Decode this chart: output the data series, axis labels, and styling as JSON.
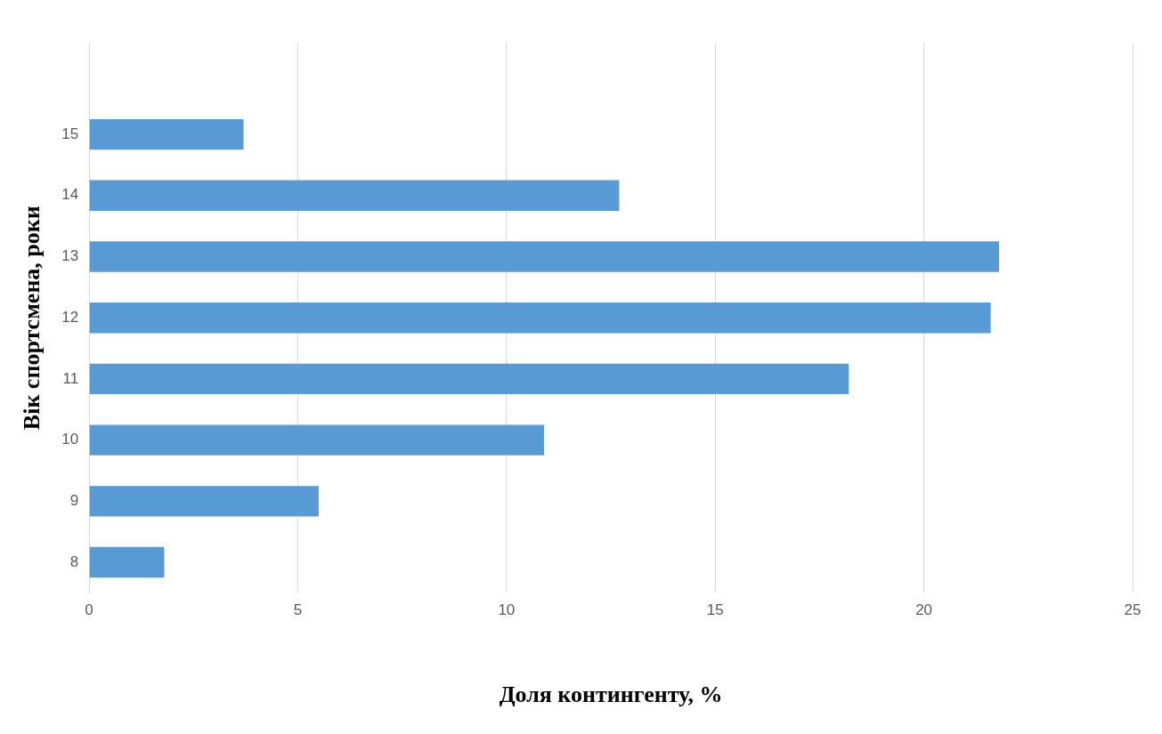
{
  "chart_data": {
    "type": "bar",
    "orientation": "horizontal",
    "xlabel": "Доля контингенту, %",
    "ylabel": "Вік спортсмена, роки",
    "categories": [
      null,
      "15",
      "14",
      "13",
      "12",
      "11",
      "10",
      "9",
      "8"
    ],
    "values": [
      null,
      3.7,
      12.7,
      21.8,
      21.6,
      18.2,
      10.9,
      5.5,
      1.8
    ],
    "color": "#5b9bd5",
    "xlim": [
      0,
      25
    ],
    "xticks": [
      0,
      5,
      10,
      15,
      20,
      25
    ],
    "grid": "x",
    "legend": false
  }
}
